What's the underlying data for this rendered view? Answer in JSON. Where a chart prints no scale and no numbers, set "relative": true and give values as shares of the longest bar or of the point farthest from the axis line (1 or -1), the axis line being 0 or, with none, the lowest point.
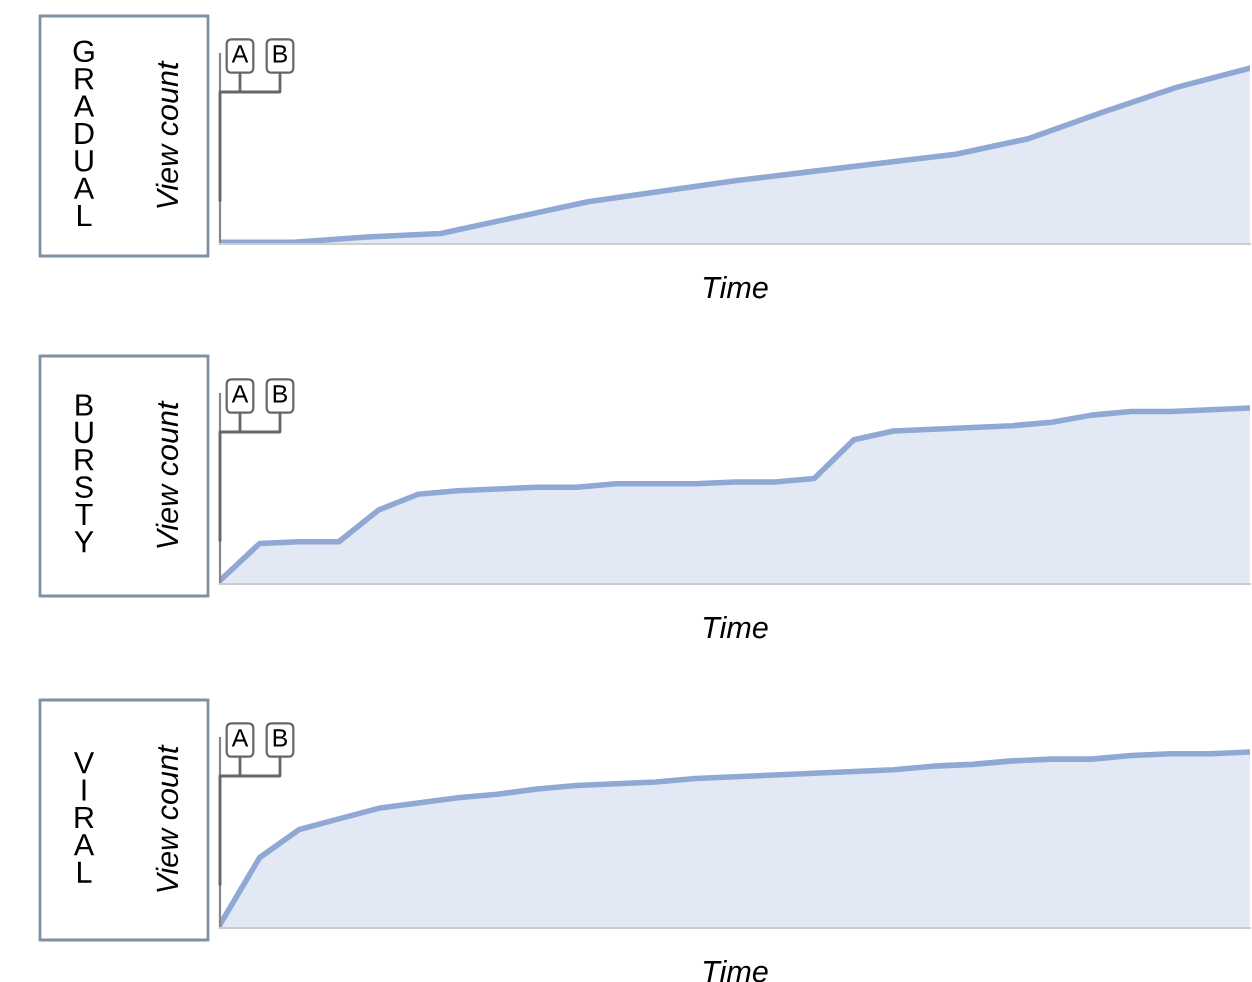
{
  "chart_data": [
    {
      "type": "area",
      "title": "GRADUAL",
      "ylabel": "View count",
      "xlabel": "Time",
      "relative": true,
      "annotations": [
        "A",
        "B"
      ],
      "color": "#8fa9d4",
      "categories": [
        null,
        null,
        null,
        null,
        null,
        null,
        null,
        null,
        null,
        null,
        null,
        null,
        null,
        null,
        null
      ],
      "values": [
        0.01,
        0.01,
        0.04,
        0.06,
        0.15,
        0.24,
        0.3,
        0.36,
        0.41,
        0.46,
        0.51,
        0.6,
        0.75,
        0.89,
        1.0
      ]
    },
    {
      "type": "area",
      "title": "BURSTY",
      "ylabel": "View count",
      "xlabel": "Time",
      "relative": true,
      "annotations": [
        "A",
        "B"
      ],
      "color": "#8fa9d4",
      "categories": [
        null,
        null,
        null,
        null,
        null,
        null,
        null,
        null,
        null,
        null,
        null,
        null,
        null,
        null,
        null,
        null,
        null,
        null,
        null,
        null,
        null,
        null,
        null,
        null,
        null,
        null,
        null
      ],
      "values": [
        0.02,
        0.23,
        0.24,
        0.24,
        0.42,
        0.51,
        0.53,
        0.54,
        0.55,
        0.55,
        0.57,
        0.57,
        0.57,
        0.58,
        0.58,
        0.6,
        0.82,
        0.87,
        0.88,
        0.89,
        0.9,
        0.92,
        0.96,
        0.98,
        0.98,
        0.99,
        1.0
      ]
    },
    {
      "type": "area",
      "title": "VIRAL",
      "ylabel": "View count",
      "xlabel": "Time",
      "relative": true,
      "annotations": [
        "A",
        "B"
      ],
      "color": "#8fa9d4",
      "categories": [
        null,
        null,
        null,
        null,
        null,
        null,
        null,
        null,
        null,
        null,
        null,
        null,
        null,
        null,
        null,
        null,
        null,
        null,
        null,
        null,
        null,
        null,
        null,
        null,
        null,
        null,
        null
      ],
      "values": [
        0.02,
        0.4,
        0.56,
        0.62,
        0.68,
        0.71,
        0.74,
        0.76,
        0.79,
        0.81,
        0.82,
        0.83,
        0.85,
        0.86,
        0.87,
        0.88,
        0.89,
        0.9,
        0.92,
        0.93,
        0.95,
        0.96,
        0.96,
        0.98,
        0.99,
        0.99,
        1.0
      ]
    }
  ]
}
